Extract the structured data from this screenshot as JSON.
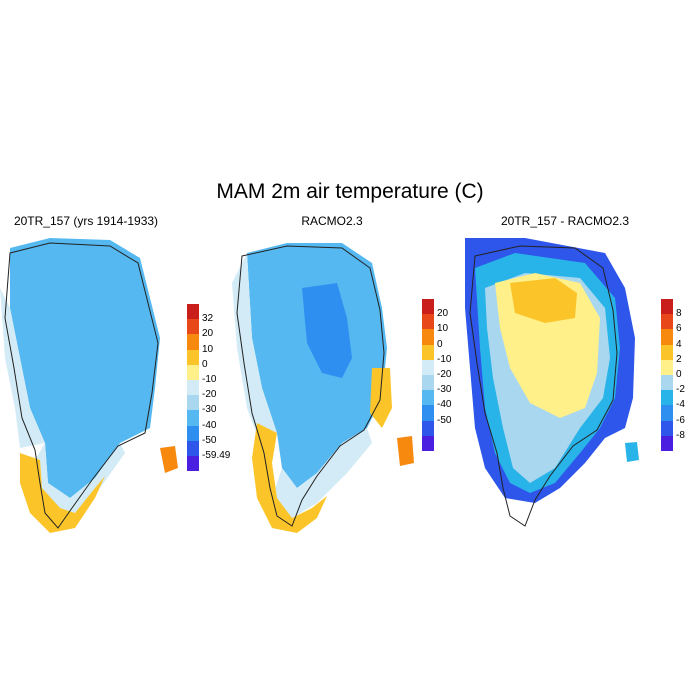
{
  "title": "MAM 2m air temperature (C)",
  "panels": [
    {
      "title": "20TR_157 (yrs 1914-1933)",
      "colorbar": {
        "colors": [
          "#4b1fe0",
          "#2f56ea",
          "#2f8ff0",
          "#55b8f0",
          "#a9d7f0",
          "#d2ebf6",
          "#fff08a",
          "#fbc52a",
          "#f7890f",
          "#e8471a",
          "#c91e1b"
        ],
        "labels": [
          "-59.49",
          "-50",
          "-40",
          "-30",
          "-20",
          "-10",
          "0",
          "10",
          "20",
          "32"
        ]
      }
    },
    {
      "title": "RACMO2.3",
      "colorbar": {
        "colors": [
          "#4b1fe0",
          "#2f56ea",
          "#2f8ff0",
          "#55b8f0",
          "#a9d7f0",
          "#d2ebf6",
          "#fbc52a",
          "#f7890f",
          "#e8471a",
          "#c91e1b"
        ],
        "labels": [
          "-50",
          "-40",
          "-30",
          "-20",
          "-10",
          "0",
          "10",
          "20"
        ]
      }
    },
    {
      "title": "20TR_157 - RACMO2.3",
      "colorbar": {
        "colors": [
          "#4b1fe0",
          "#2f56ea",
          "#2f8ff0",
          "#28b4e8",
          "#a9d7f0",
          "#fff08a",
          "#fbc52a",
          "#f7890f",
          "#e8471a",
          "#c91e1b"
        ],
        "labels": [
          "-8",
          "-6",
          "-4",
          "-2",
          "0",
          "2",
          "4",
          "6",
          "8"
        ]
      }
    }
  ]
}
